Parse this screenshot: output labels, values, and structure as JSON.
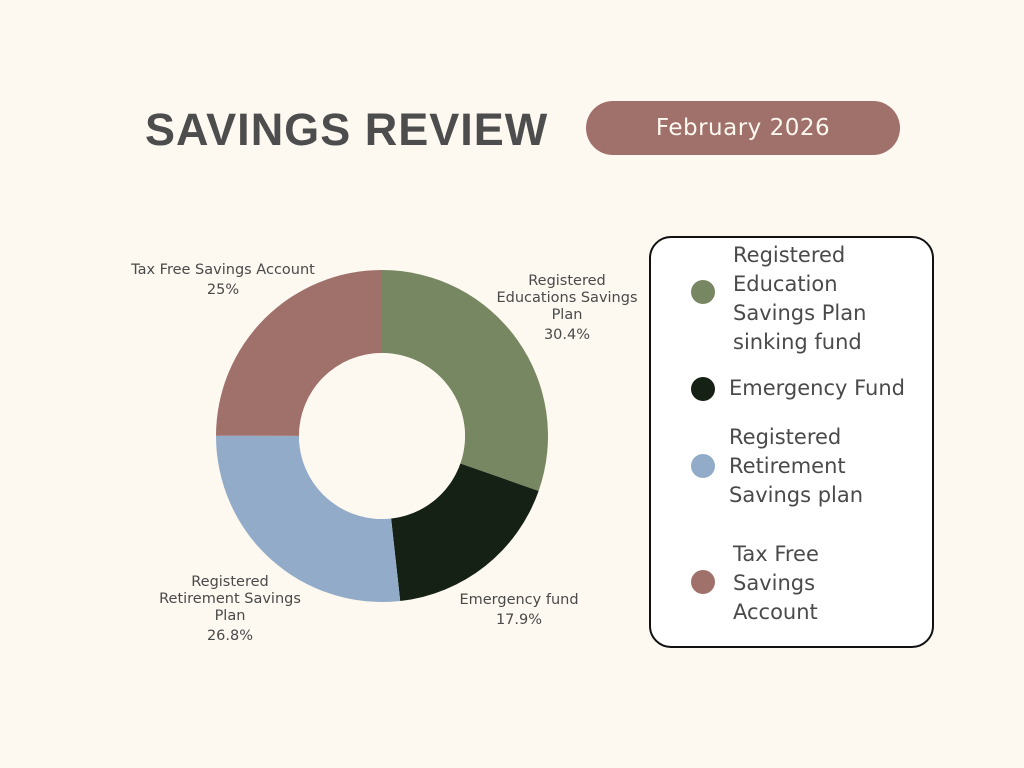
{
  "header": {
    "title": "SAVINGS REVIEW",
    "date": "February 2026"
  },
  "chart_data": {
    "type": "pie",
    "title": "",
    "slices": [
      {
        "label": "Registered Educations Savings Plan",
        "value": 30.4,
        "value_label": "30.4%",
        "color": "#778762"
      },
      {
        "label": "Emergency fund",
        "value": 17.9,
        "value_label": "17.9%",
        "color": "#162116"
      },
      {
        "label": "Registered Retirement Savings Plan",
        "value": 26.8,
        "value_label": "26.8%",
        "color": "#92abc8"
      },
      {
        "label": "Tax Free Savings Account",
        "value": 25,
        "value_label": "25%",
        "color": "#a0706b"
      }
    ],
    "legend_placement": "right"
  },
  "legend": {
    "items": [
      {
        "label": "Registered\nEducation\nSavings Plan\nsinking fund",
        "color": "#778762"
      },
      {
        "label": "Emergency Fund",
        "color": "#162116"
      },
      {
        "label": "Registered\nRetirement\nSavings plan",
        "color": "#92abc8"
      },
      {
        "label": "Tax Free\nSavings\nAccount",
        "color": "#a0706b"
      }
    ]
  }
}
